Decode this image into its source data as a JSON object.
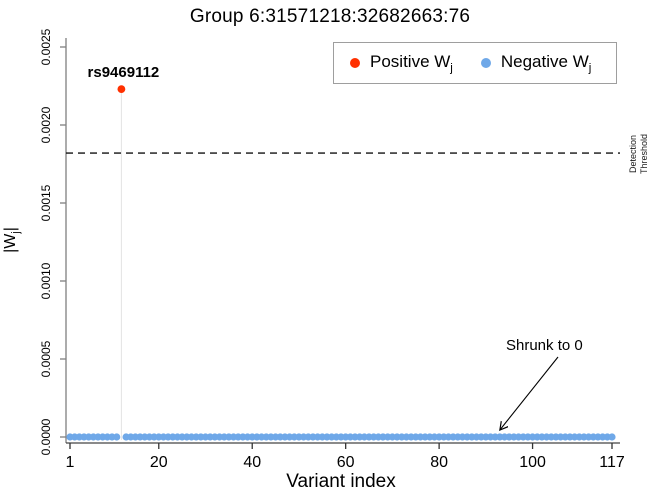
{
  "title": "Group 6:31571218:32682663:76",
  "colors": {
    "positive": "#FF3000",
    "negative": "#6FA8E8",
    "stem": "#E3E3E3",
    "axis": "#808080",
    "tick": "#333333",
    "threshold": "#111111",
    "text": "#000000",
    "legend_border": "#9E9E9E"
  },
  "legend": {
    "items": [
      {
        "name": "Positive W",
        "sub": "j"
      },
      {
        "name": "Negative W",
        "sub": "j"
      }
    ]
  },
  "ylabel_parts": {
    "pre": "|W",
    "sub": "j",
    "post": "|"
  },
  "chart_data": {
    "type": "scatter",
    "title": "Group 6:31571218:32682663:76",
    "xlabel": "Variant index",
    "ylabel": "|Wj|",
    "xlim": [
      1,
      117
    ],
    "ylim": [
      0,
      0.0025
    ],
    "x_ticks": [
      1,
      20,
      40,
      60,
      80,
      100,
      117
    ],
    "y_ticks": [
      0,
      0.0005,
      0.001,
      0.0015,
      0.002,
      0.0025
    ],
    "y_tick_labels": [
      "0.0000",
      "0.0005",
      "0.0010",
      "0.0015",
      "0.0020",
      "0.0025"
    ],
    "n_variants": 117,
    "grid": false,
    "legend_position": "top-right",
    "legend_entries": [
      "Positive Wj",
      "Negative Wj"
    ],
    "threshold_line": {
      "value": 0.00182,
      "label": "Detection Threshold",
      "style": "dashed"
    },
    "series": [
      {
        "name": "Positive Wj",
        "color": "#FF3000",
        "points": [
          {
            "x": 12,
            "y": 0.00223,
            "label": "rs9469112"
          }
        ]
      },
      {
        "name": "Negative Wj",
        "color": "#6FA8E8",
        "points_compact": {
          "x_from": 1,
          "x_to": 117,
          "exclude_x": [
            12
          ],
          "y_all": 0
        }
      }
    ],
    "annotation": {
      "text": "Shrunk to 0",
      "target_x": 93,
      "target_y": 0
    }
  }
}
